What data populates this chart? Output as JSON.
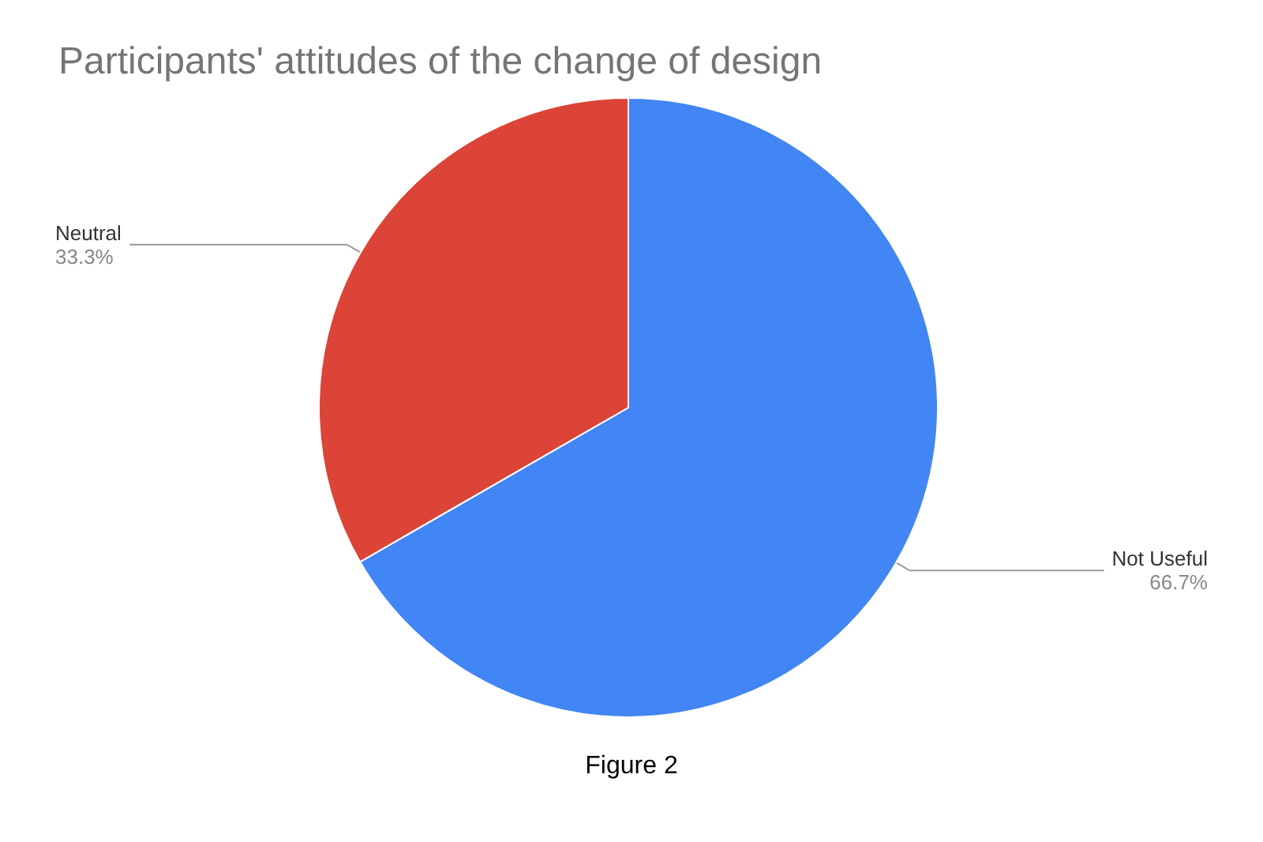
{
  "chart_data": {
    "type": "pie",
    "title": "Participants' attitudes of the change of design",
    "categories": [
      "Not Useful",
      "Neutral"
    ],
    "values": [
      66.7,
      33.3
    ],
    "colors": [
      "#4285f4",
      "#db4437"
    ],
    "value_labels": [
      "66.7%",
      "33.3%"
    ],
    "annotations": [
      "Figure 2"
    ],
    "legend": false
  }
}
